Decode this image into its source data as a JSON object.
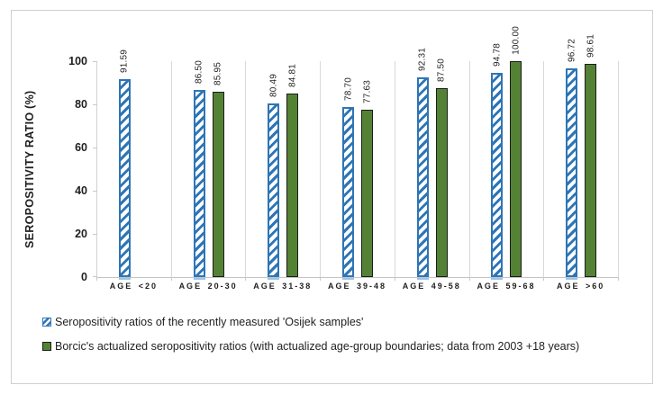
{
  "figure": {
    "border_color": "#d0d0d0",
    "background": "#ffffff"
  },
  "chart_data": {
    "type": "bar",
    "title": "",
    "xlabel": "",
    "ylabel": "SEROPOSITIVITY RATIO (%)",
    "ylim": [
      0,
      100
    ],
    "yticks": [
      0,
      20,
      40,
      60,
      80,
      100
    ],
    "grid": "vertical category separator lines only",
    "legend_position": "bottom-left",
    "data_label_orientation": "rotated-90-vertical",
    "categories": [
      "AGE <20",
      "AGE 20-30",
      "AGE 31-38",
      "AGE 39-48",
      "AGE 49-58",
      "AGE 59-68",
      "AGE >60"
    ],
    "series": [
      {
        "name": "Seropositivity ratios of the recently measured 'Osijek samples'",
        "style": "blue-upward-diagonal-hatch",
        "color": "#2E75B6",
        "underline_color": "#9DC3E6",
        "values": [
          91.59,
          86.5,
          80.49,
          78.7,
          92.31,
          94.78,
          96.72
        ],
        "labels": [
          "91.59",
          "86.50",
          "80.49",
          "78.70",
          "92.31",
          "94.78",
          "96.72"
        ]
      },
      {
        "name": "Borcic's actualized seropositivity ratios (with actualized age-group boundaries; data from 2003 +18 years)",
        "style": "solid-green",
        "color": "#548235",
        "border_color": "#1c1c1c",
        "values": [
          null,
          85.95,
          84.81,
          77.63,
          87.5,
          100.0,
          98.61
        ],
        "labels": [
          "",
          "85.95",
          "84.81",
          "77.63",
          "87.50",
          "100.00",
          "98.61"
        ]
      }
    ]
  }
}
